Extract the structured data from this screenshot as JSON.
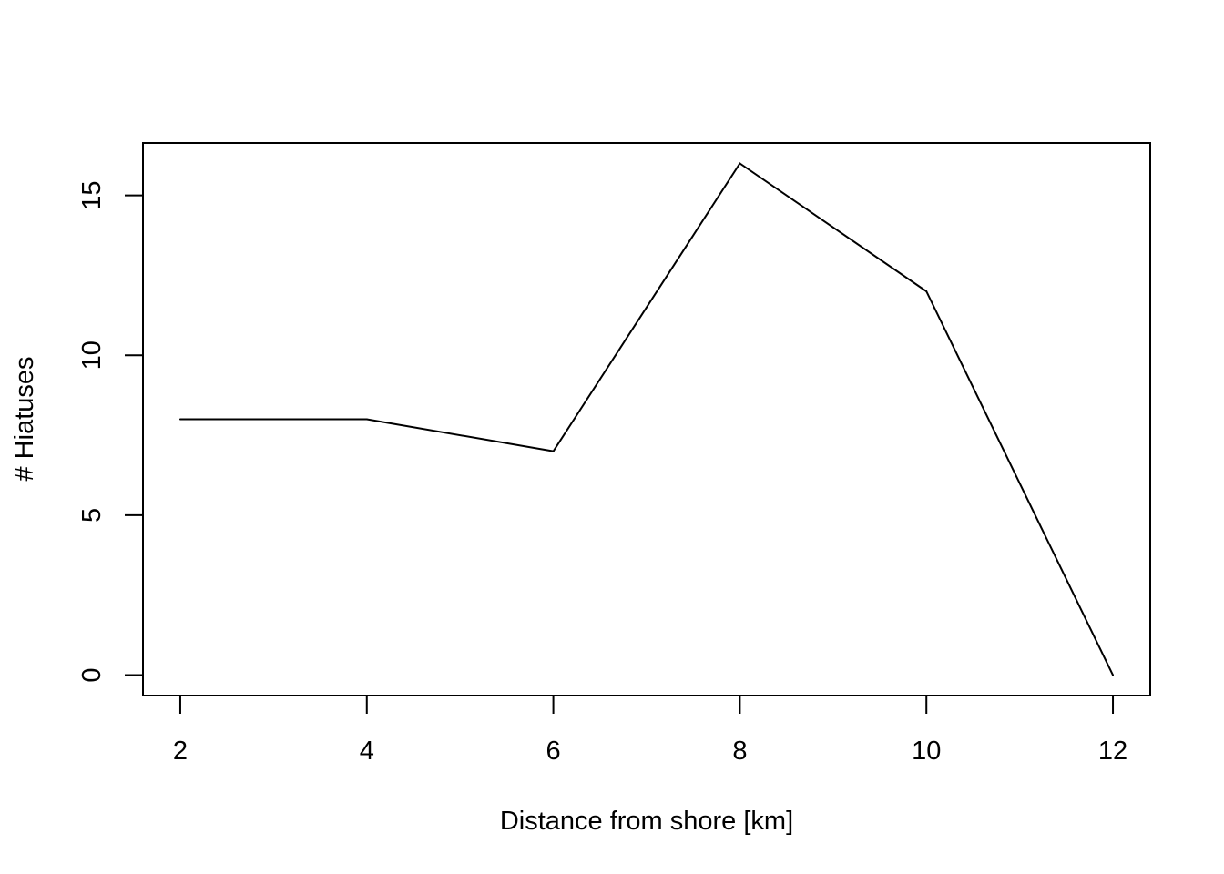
{
  "chart_data": {
    "type": "line",
    "title": "",
    "xlabel": "Distance from shore [km]",
    "ylabel": "# Hiatuses",
    "x": [
      2,
      4,
      6,
      8,
      10,
      12
    ],
    "series": [
      {
        "values": [
          8,
          8,
          7,
          16,
          12,
          0
        ],
        "color": "#000000"
      }
    ],
    "xticks": [
      2,
      4,
      6,
      8,
      10,
      12
    ],
    "yticks": [
      0,
      5,
      10,
      15
    ],
    "xticklabels": [
      "2",
      "4",
      "6",
      "8",
      "10",
      "12"
    ],
    "yticklabels": [
      "0",
      "5",
      "10",
      "15"
    ],
    "xlim": [
      1.6,
      12.4
    ],
    "ylim": [
      -0.64,
      16.64
    ],
    "grid": false,
    "legend": "none"
  }
}
